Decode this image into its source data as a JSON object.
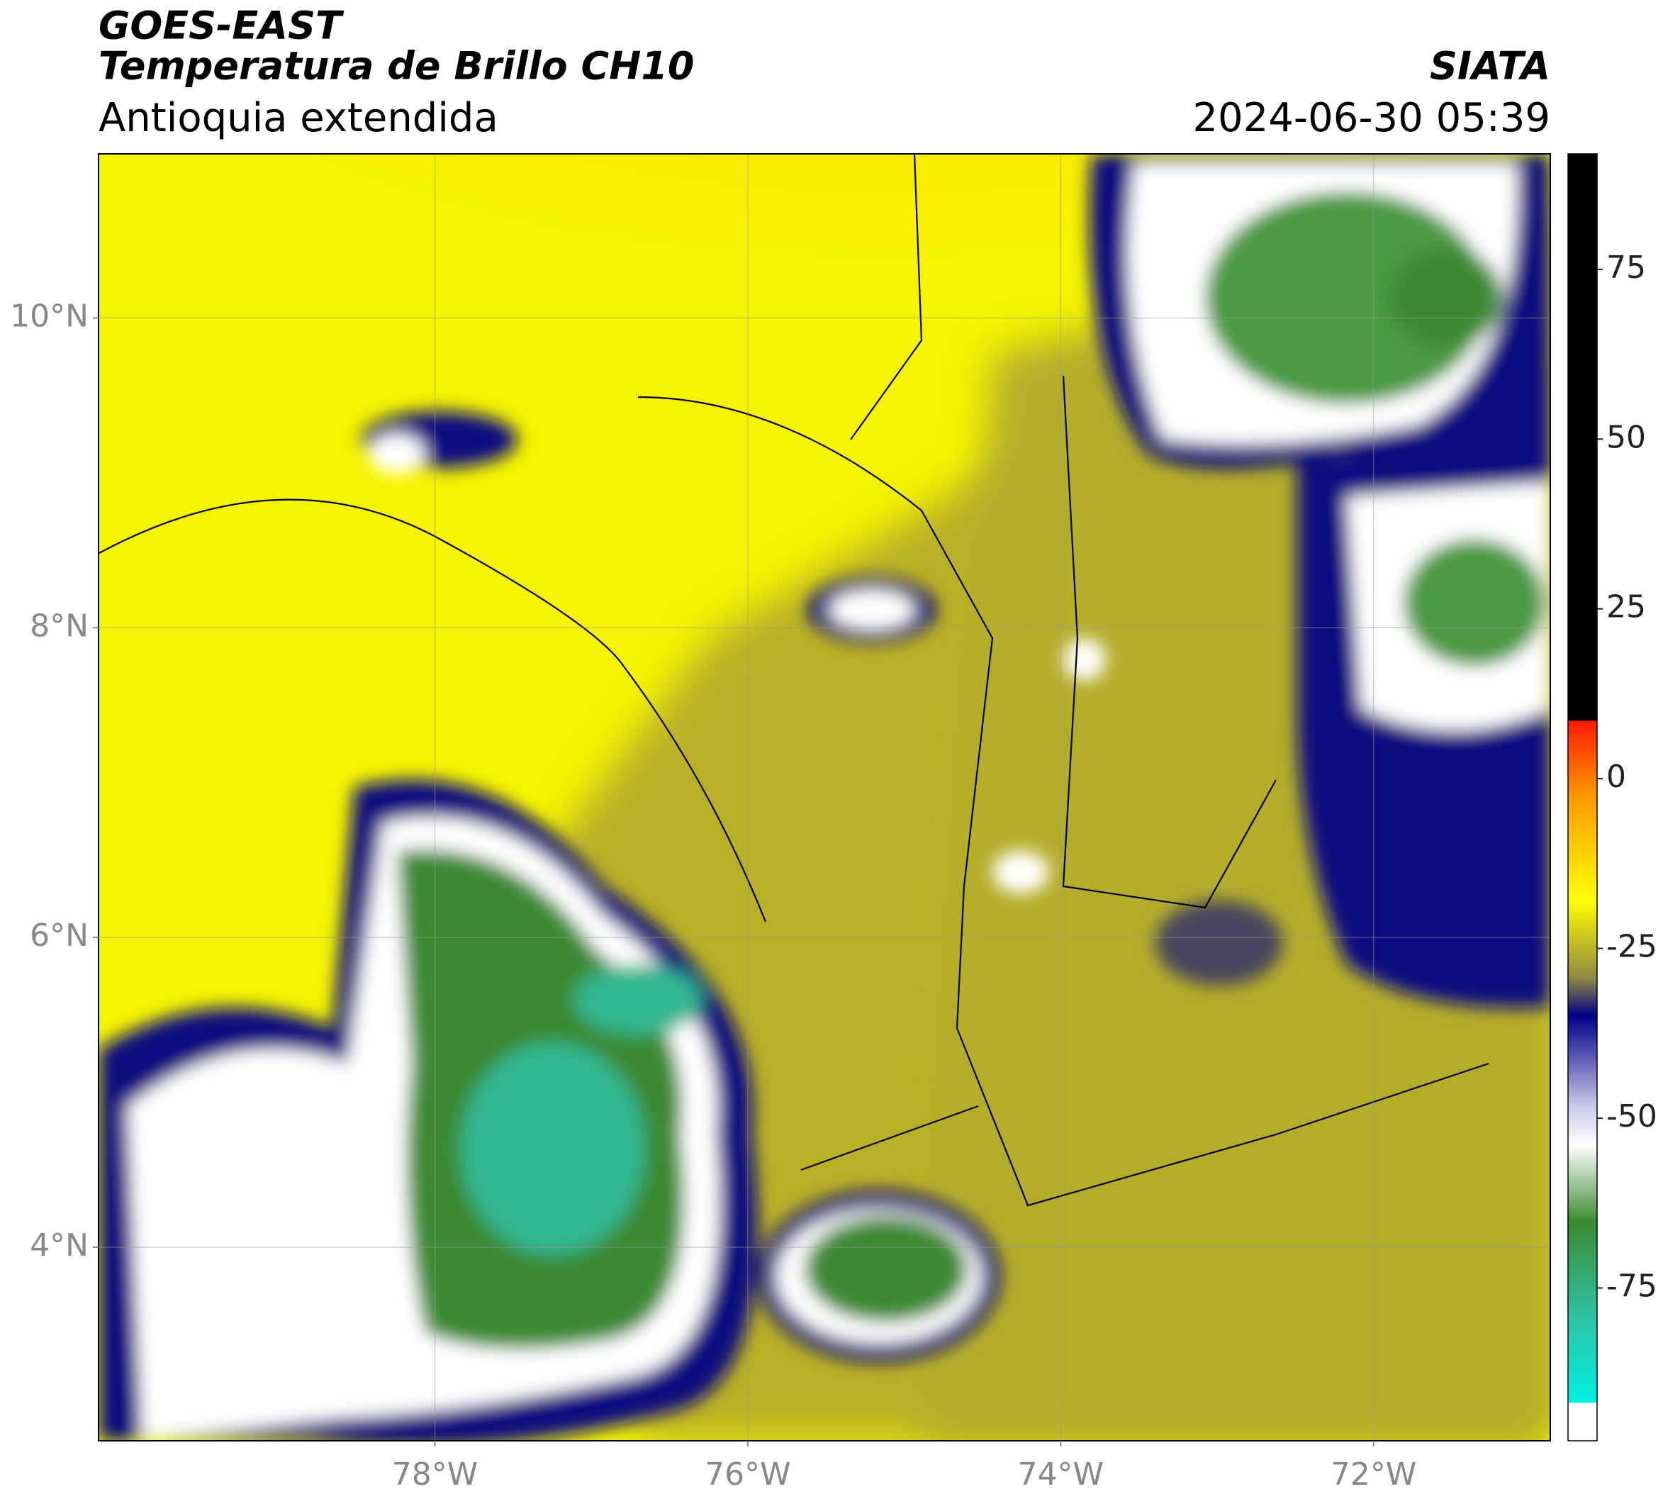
{
  "header": {
    "title": "GOES-EAST",
    "subtitle": "Temperatura de Brillo CH10",
    "region": "Antioquia extendida",
    "source": "SIATA",
    "datetime": "2024-06-30 05:39"
  },
  "map": {
    "xlim": [
      -80.15,
      -70.87
    ],
    "ylim": [
      2.75,
      11.06
    ],
    "xticks": [
      {
        "value": -78,
        "label": "78°W"
      },
      {
        "value": -76,
        "label": "76°W"
      },
      {
        "value": -74,
        "label": "74°W"
      },
      {
        "value": -72,
        "label": "72°W"
      }
    ],
    "yticks": [
      {
        "value": 10,
        "label": "10°N"
      },
      {
        "value": 8,
        "label": "8°N"
      },
      {
        "value": 6,
        "label": "6°N"
      },
      {
        "value": 4,
        "label": "4°N"
      }
    ],
    "grid": true
  },
  "colorbar": {
    "lim": [
      -97.5,
      92
    ],
    "ticks": [
      75,
      50,
      25,
      0,
      -25,
      -50,
      -75
    ]
  }
}
